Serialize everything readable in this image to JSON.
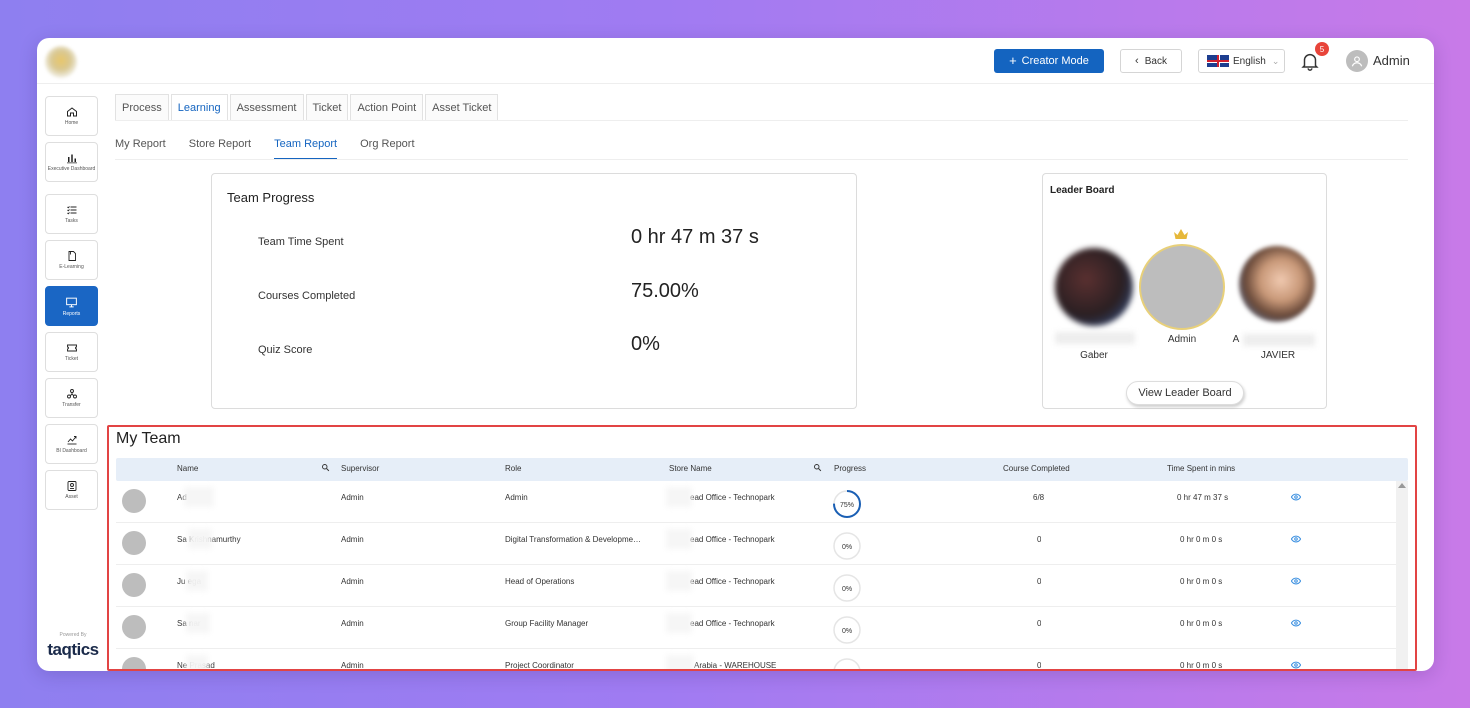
{
  "header": {
    "creator_mode_label": "Creator Mode",
    "back_label": "Back",
    "language": "English",
    "notification_count": "5",
    "user_name": "Admin"
  },
  "sidebar": {
    "items": [
      {
        "label": "Home",
        "icon": "home-icon"
      },
      {
        "label": "Executive Dashboard",
        "icon": "bar-chart-icon"
      },
      {
        "label": "Tasks",
        "icon": "checklist-icon"
      },
      {
        "label": "E-Learning",
        "icon": "book-icon"
      },
      {
        "label": "Reports",
        "icon": "monitor-icon",
        "active": true
      },
      {
        "label": "Ticket",
        "icon": "ticket-icon"
      },
      {
        "label": "Transfer",
        "icon": "transfer-icon"
      },
      {
        "label": "BI Dashboard",
        "icon": "chart-line-icon"
      },
      {
        "label": "Asset",
        "icon": "asset-icon"
      }
    ],
    "powered_by": "Powered By",
    "brand": "taqtics"
  },
  "tabs_primary": [
    "Process",
    "Learning",
    "Assessment",
    "Ticket",
    "Action Point",
    "Asset Ticket"
  ],
  "tabs_secondary": [
    "My Report",
    "Store Report",
    "Team Report",
    "Org Report"
  ],
  "team_progress": {
    "title": "Team Progress",
    "rows": [
      {
        "label": "Team Time Spent",
        "value": "0 hr 47 m 37 s"
      },
      {
        "label": "Courses Completed",
        "value": "75.00%"
      },
      {
        "label": "Quiz Score",
        "value": "0%"
      }
    ]
  },
  "leader_board": {
    "title": "Leader Board",
    "left_name": "Gaber",
    "center_name": "Admin",
    "right_initial": "A",
    "right_name": "JAVIER",
    "button_label": "View Leader Board"
  },
  "my_team": {
    "title": "My Team",
    "columns": [
      "Name",
      "Supervisor",
      "Role",
      "Store Name",
      "Progress",
      "Course Completed",
      "Time Spent in mins"
    ],
    "rows": [
      {
        "name": "Ad",
        "supervisor": "Admin",
        "role": "Admin",
        "store": "ead Office - Technopark",
        "progress": "75%",
        "progress_value": 0.75,
        "course_completed": "6/8",
        "time_spent": "0 hr 47 m 37 s"
      },
      {
        "name": "Sa        Krishnamurthy",
        "supervisor": "Admin",
        "role": "Digital Transformation & Developme…",
        "store": "ead Office - Technopark",
        "progress": "0%",
        "progress_value": 0,
        "course_completed": "0",
        "time_spent": "0 hr 0 m 0 s"
      },
      {
        "name": "Ju        ega",
        "supervisor": "Admin",
        "role": "Head of Operations",
        "store": "ead Office - Technopark",
        "progress": "0%",
        "progress_value": 0,
        "course_completed": "0",
        "time_spent": "0 hr 0 m 0 s"
      },
      {
        "name": "Sa        nar",
        "supervisor": "Admin",
        "role": "Group Facility Manager",
        "store": "ead Office - Technopark",
        "progress": "0%",
        "progress_value": 0,
        "course_completed": "0",
        "time_spent": "0 hr 0 m 0 s"
      },
      {
        "name": "Ne        Prasad",
        "supervisor": "Admin",
        "role": "Project Coordinator",
        "store": "Arabia - WAREHOUSE",
        "progress": "0%",
        "progress_value": 0,
        "course_completed": "0",
        "time_spent": "0 hr 0 m 0 s"
      }
    ]
  },
  "colors": {
    "accent": "#1565c0",
    "highlight_border": "#e24444",
    "badge": "#e8443a",
    "crown": "#e6b83a"
  }
}
